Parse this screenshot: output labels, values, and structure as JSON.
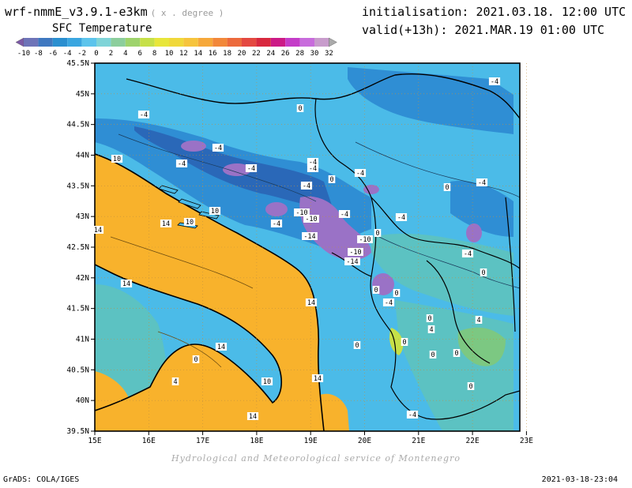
{
  "header": {
    "model": "wrf-nmmE_v3.9.1-e3km",
    "units": "( x . degree )",
    "field": "SFC Temperature",
    "init_label": "initialisation:",
    "init_value": "2021.03.18. 12:00 UTC",
    "valid_label": "valid(+13h):",
    "valid_value": "2021.MAR.19 01:00 UTC"
  },
  "colorbar": {
    "labels": [
      "-10",
      "-8",
      "-6",
      "-4",
      "-2",
      "0",
      "2",
      "4",
      "6",
      "8",
      "10",
      "12",
      "14",
      "16",
      "18",
      "20",
      "22",
      "24",
      "26",
      "28",
      "30",
      "32"
    ],
    "colors": [
      "#7c5aa6",
      "#6e74b8",
      "#3f78c0",
      "#2a8fd0",
      "#3aa6e0",
      "#5cc4ec",
      "#7fd4d8",
      "#8cce9c",
      "#9ed36c",
      "#c6e048",
      "#e8e63a",
      "#f0d83a",
      "#f6c43c",
      "#f6a83a",
      "#f2883a",
      "#ec6a3c",
      "#e44840",
      "#d8283e",
      "#cc1a86",
      "#c43cc8",
      "#c86cdc",
      "#c89ccc",
      "#aaaaaa"
    ]
  },
  "axes": {
    "lat_labels": [
      "45.5N",
      "45N",
      "44.5N",
      "44N",
      "43.5N",
      "43N",
      "42.5N",
      "42N",
      "41.5N",
      "41N",
      "40.5N",
      "40N",
      "39.5N"
    ],
    "lon_labels": [
      "15E",
      "16E",
      "17E",
      "18E",
      "19E",
      "20E",
      "21E",
      "22E",
      "23E"
    ]
  },
  "contour_labels": [
    "-4",
    "-4",
    "-4",
    "-4",
    "-4",
    "-4",
    "-4",
    "-4",
    "-4",
    "-4",
    "-4",
    "-4",
    "-4",
    "-4",
    "-4",
    "-4",
    "-10",
    "-10",
    "-10",
    "-10",
    "-14",
    "-14",
    "0",
    "0",
    "0",
    "0",
    "0",
    "0",
    "0",
    "0",
    "0",
    "0",
    "0",
    "0",
    "0",
    "0",
    "4",
    "4",
    "4",
    "10",
    "10",
    "10",
    "10",
    "14",
    "14",
    "14",
    "14",
    "14",
    "14",
    "14"
  ],
  "colors": {
    "sea": "#f8b22c",
    "land_base": "#4bbbe8",
    "land_cold": "#2f8ed4",
    "land_colder": "#2a68b8",
    "land_purple": "#9a72c6",
    "land_teal": "#5cc2c2",
    "land_green": "#7cc882"
  },
  "footer": {
    "credit": "Hydrological and Meteorological service of Montenegro",
    "software": "GrADS: COLA/IGES",
    "timestamp": "2021-03-18-23:04"
  }
}
